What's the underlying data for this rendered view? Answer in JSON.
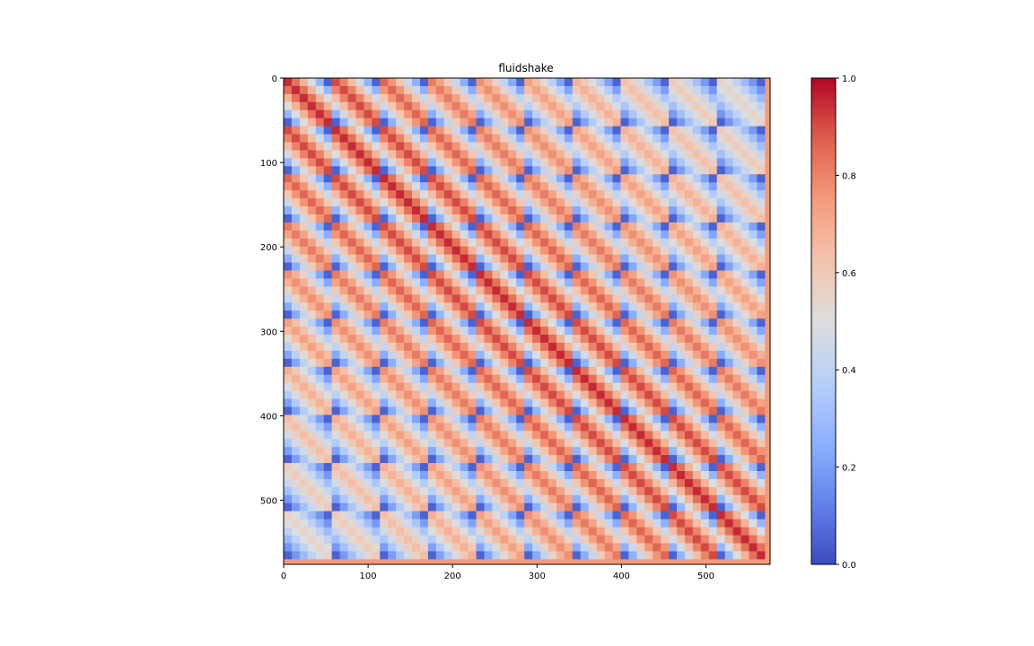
{
  "chart_data": {
    "type": "heatmap",
    "title": "fluidshake",
    "colormap": "coolwarm",
    "n_rows": 576,
    "n_cols": 576,
    "block_size": 57,
    "n_blocks": 10,
    "x_ticks": [
      0,
      100,
      200,
      300,
      400,
      500
    ],
    "y_ticks": [
      0,
      100,
      200,
      300,
      400,
      500
    ],
    "colorbar_ticks": [
      "0.0",
      "0.2",
      "0.4",
      "0.6",
      "0.8",
      "1.0"
    ],
    "colorbar_range": [
      0.0,
      1.0
    ],
    "value_model": {
      "diagonal_block_peak": 0.95,
      "far_block_peak": 0.55,
      "in_block_edge_value": 0.05
    }
  }
}
